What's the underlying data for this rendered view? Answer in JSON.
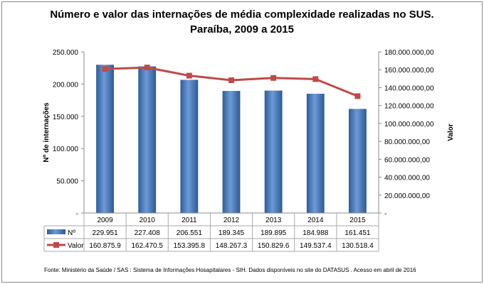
{
  "chart_data": {
    "type": "bar+line",
    "title": "Número e valor das internações de média complexidade realizadas no SUS.",
    "subtitle": "Paraíba, 2009 a 2015",
    "categories": [
      "2009",
      "2010",
      "2011",
      "2012",
      "2013",
      "2014",
      "2015"
    ],
    "y_left": {
      "label": "Nº de internações",
      "range": [
        0,
        250000
      ],
      "ticks": [
        "-",
        "50.000",
        "100.000",
        "150.000",
        "200.000",
        "250.000"
      ]
    },
    "y_right": {
      "label": "Valor",
      "range": [
        0,
        180000000
      ],
      "ticks": [
        "-",
        "20.000.000,00",
        "40.000.000,00",
        "60.000.000,00",
        "80.000.000,00",
        "100.000.000,00",
        "120.000.000,00",
        "140.000.000,00",
        "160.000.000,00",
        "180.000.000,00"
      ]
    },
    "series": [
      {
        "name": "Nº",
        "type": "bar",
        "axis": "left",
        "color": "#4a7ebb",
        "values": [
          229951,
          227408,
          206551,
          189345,
          189895,
          184988,
          161451
        ],
        "table_labels": [
          "229.951",
          "227.408",
          "206.551",
          "189.345",
          "189.895",
          "184.988",
          "161.451"
        ]
      },
      {
        "name": "Valor",
        "type": "line",
        "axis": "right",
        "color": "#be4b48",
        "values": [
          160875900,
          162470500,
          153395800,
          148267300,
          150829600,
          149537400,
          130518400
        ],
        "table_labels": [
          "160.875.9",
          "162.470.5",
          "153.395.8",
          "148.267.3",
          "150.829.6",
          "149.537.4",
          "130.518.4"
        ]
      }
    ],
    "grid": false,
    "legend": "data-table"
  },
  "source": "Fonte:  Ministério da Saúde  / SAS : Sistema de Informações Hosapitalares - SIH. Dados disponíveis no site do DATASUS . Acesso em abril de 2016"
}
